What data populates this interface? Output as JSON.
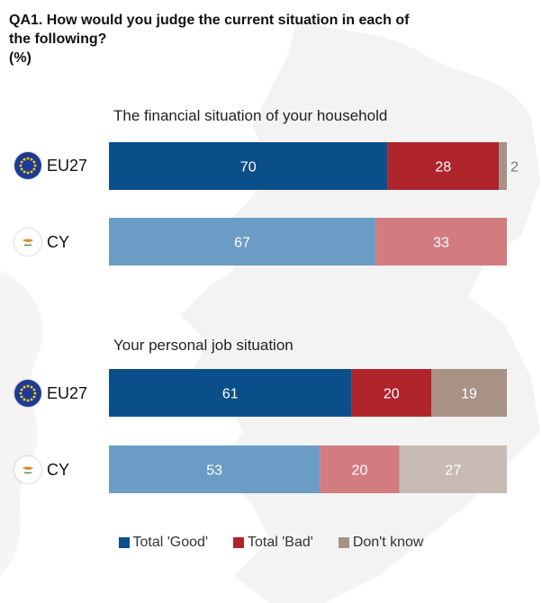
{
  "title": {
    "line1": "QA1. How would you judge the current situation in each of",
    "line2": "the following?",
    "line3": "(%)"
  },
  "colors": {
    "good_eu": "#0b4f8a",
    "bad_eu": "#b0242b",
    "dk_eu": "#a89286",
    "good_cy": "#6b9cc6",
    "bad_cy": "#d27c80",
    "dk_cy": "#c8bbb5"
  },
  "chart_data": {
    "type": "bar",
    "orientation": "horizontal",
    "stacked": true,
    "legend_placement": "bottom",
    "series_names": [
      "Total 'Good'",
      "Total 'Bad'",
      "Don't know"
    ],
    "panels": [
      {
        "title": "The financial situation of your household",
        "rows": [
          {
            "label": "EU27",
            "flag": "eu-flag-icon",
            "values": [
              70,
              28,
              2
            ]
          },
          {
            "label": "CY",
            "flag": "cyprus-flag-icon",
            "values": [
              67,
              33,
              0
            ]
          }
        ]
      },
      {
        "title": "Your personal job situation",
        "rows": [
          {
            "label": "EU27",
            "flag": "eu-flag-icon",
            "values": [
              61,
              20,
              19
            ]
          },
          {
            "label": "CY",
            "flag": "cyprus-flag-icon",
            "values": [
              53,
              20,
              27
            ]
          }
        ]
      }
    ]
  }
}
